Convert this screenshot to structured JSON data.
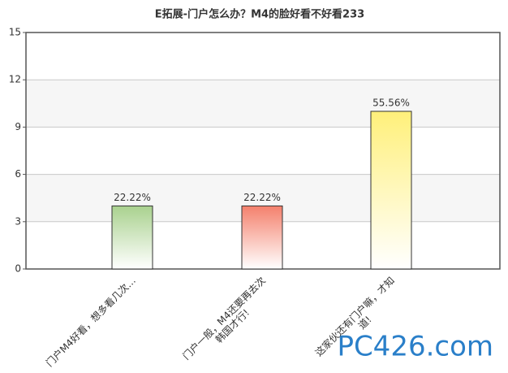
{
  "chart_data": {
    "type": "bar",
    "title": "E拓展-门户怎么办？M4的脸好看不好看233",
    "categories": [
      "门户M4好看，想多看几次…",
      "门户一般，M4还要再去次\n韩国才行!",
      "这家伙还有门户嘛，才知\n道!"
    ],
    "values": [
      4,
      4,
      10
    ],
    "value_labels": [
      "22.22%",
      "22.22%",
      "55.56%"
    ],
    "colors": [
      "#a9d18e",
      "#f4806c",
      "#fff07a"
    ],
    "ylim": [
      0,
      15
    ],
    "yticks": [
      0,
      3,
      6,
      9,
      12,
      15
    ],
    "grid": true,
    "watermark": "PC426.com"
  }
}
